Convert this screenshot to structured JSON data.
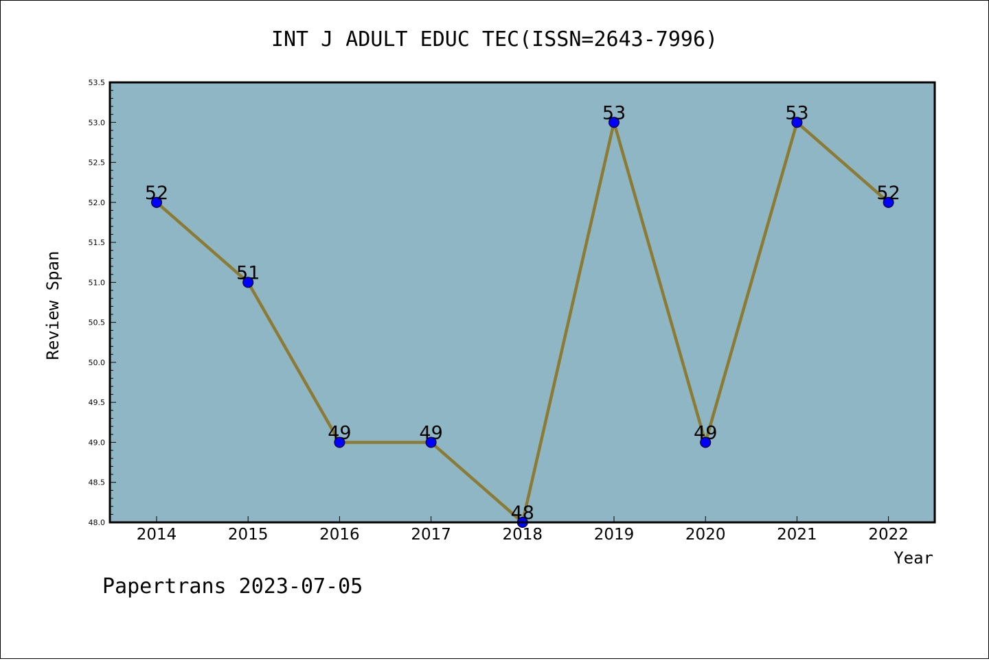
{
  "chart_data": {
    "type": "line",
    "title": "INT J ADULT EDUC TEC(ISSN=2643-7996)",
    "xlabel": "Year",
    "ylabel": "Review Span",
    "categories": [
      "2014",
      "2015",
      "2016",
      "2017",
      "2018",
      "2019",
      "2020",
      "2021",
      "2022"
    ],
    "series": [
      {
        "values": [
          52,
          51,
          49,
          49,
          48,
          53,
          49,
          53,
          52
        ]
      }
    ],
    "data_labels": [
      "52",
      "51",
      "49",
      "49",
      "48",
      "53",
      "49",
      "53",
      "52"
    ],
    "ylim": [
      48.0,
      53.5
    ],
    "yticks": [
      "48.0",
      "48.5",
      "49.0",
      "49.5",
      "50.0",
      "50.5",
      "51.0",
      "51.5",
      "52.0",
      "52.5",
      "53.0",
      "53.5"
    ],
    "grid": false,
    "colors": {
      "plot_background": "#8fb6c4",
      "line": "#8c7b34",
      "marker": "#0000ff"
    }
  },
  "footer": "Papertrans 2023-07-05"
}
